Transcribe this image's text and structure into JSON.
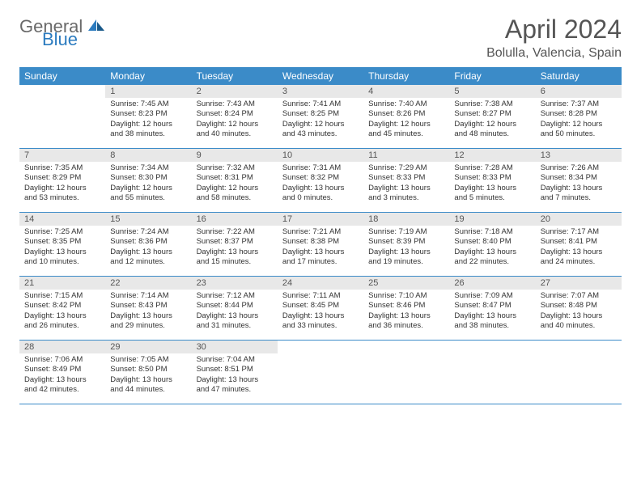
{
  "logo": {
    "general": "General",
    "blue": "Blue"
  },
  "title": "April 2024",
  "location": "Bolulla, Valencia, Spain",
  "colors": {
    "header_bg": "#3b8bc8",
    "header_text": "#ffffff",
    "daynum_bg": "#e8e8e8",
    "border": "#3b8bc8",
    "logo_gray": "#6a6a6a",
    "logo_blue": "#2b7bbf",
    "body_text": "#333333"
  },
  "weekdays": [
    "Sunday",
    "Monday",
    "Tuesday",
    "Wednesday",
    "Thursday",
    "Friday",
    "Saturday"
  ],
  "weeks": [
    [
      {
        "num": "",
        "sunrise": "",
        "sunset": "",
        "daylight": ""
      },
      {
        "num": "1",
        "sunrise": "Sunrise: 7:45 AM",
        "sunset": "Sunset: 8:23 PM",
        "daylight": "Daylight: 12 hours and 38 minutes."
      },
      {
        "num": "2",
        "sunrise": "Sunrise: 7:43 AM",
        "sunset": "Sunset: 8:24 PM",
        "daylight": "Daylight: 12 hours and 40 minutes."
      },
      {
        "num": "3",
        "sunrise": "Sunrise: 7:41 AM",
        "sunset": "Sunset: 8:25 PM",
        "daylight": "Daylight: 12 hours and 43 minutes."
      },
      {
        "num": "4",
        "sunrise": "Sunrise: 7:40 AM",
        "sunset": "Sunset: 8:26 PM",
        "daylight": "Daylight: 12 hours and 45 minutes."
      },
      {
        "num": "5",
        "sunrise": "Sunrise: 7:38 AM",
        "sunset": "Sunset: 8:27 PM",
        "daylight": "Daylight: 12 hours and 48 minutes."
      },
      {
        "num": "6",
        "sunrise": "Sunrise: 7:37 AM",
        "sunset": "Sunset: 8:28 PM",
        "daylight": "Daylight: 12 hours and 50 minutes."
      }
    ],
    [
      {
        "num": "7",
        "sunrise": "Sunrise: 7:35 AM",
        "sunset": "Sunset: 8:29 PM",
        "daylight": "Daylight: 12 hours and 53 minutes."
      },
      {
        "num": "8",
        "sunrise": "Sunrise: 7:34 AM",
        "sunset": "Sunset: 8:30 PM",
        "daylight": "Daylight: 12 hours and 55 minutes."
      },
      {
        "num": "9",
        "sunrise": "Sunrise: 7:32 AM",
        "sunset": "Sunset: 8:31 PM",
        "daylight": "Daylight: 12 hours and 58 minutes."
      },
      {
        "num": "10",
        "sunrise": "Sunrise: 7:31 AM",
        "sunset": "Sunset: 8:32 PM",
        "daylight": "Daylight: 13 hours and 0 minutes."
      },
      {
        "num": "11",
        "sunrise": "Sunrise: 7:29 AM",
        "sunset": "Sunset: 8:33 PM",
        "daylight": "Daylight: 13 hours and 3 minutes."
      },
      {
        "num": "12",
        "sunrise": "Sunrise: 7:28 AM",
        "sunset": "Sunset: 8:33 PM",
        "daylight": "Daylight: 13 hours and 5 minutes."
      },
      {
        "num": "13",
        "sunrise": "Sunrise: 7:26 AM",
        "sunset": "Sunset: 8:34 PM",
        "daylight": "Daylight: 13 hours and 7 minutes."
      }
    ],
    [
      {
        "num": "14",
        "sunrise": "Sunrise: 7:25 AM",
        "sunset": "Sunset: 8:35 PM",
        "daylight": "Daylight: 13 hours and 10 minutes."
      },
      {
        "num": "15",
        "sunrise": "Sunrise: 7:24 AM",
        "sunset": "Sunset: 8:36 PM",
        "daylight": "Daylight: 13 hours and 12 minutes."
      },
      {
        "num": "16",
        "sunrise": "Sunrise: 7:22 AM",
        "sunset": "Sunset: 8:37 PM",
        "daylight": "Daylight: 13 hours and 15 minutes."
      },
      {
        "num": "17",
        "sunrise": "Sunrise: 7:21 AM",
        "sunset": "Sunset: 8:38 PM",
        "daylight": "Daylight: 13 hours and 17 minutes."
      },
      {
        "num": "18",
        "sunrise": "Sunrise: 7:19 AM",
        "sunset": "Sunset: 8:39 PM",
        "daylight": "Daylight: 13 hours and 19 minutes."
      },
      {
        "num": "19",
        "sunrise": "Sunrise: 7:18 AM",
        "sunset": "Sunset: 8:40 PM",
        "daylight": "Daylight: 13 hours and 22 minutes."
      },
      {
        "num": "20",
        "sunrise": "Sunrise: 7:17 AM",
        "sunset": "Sunset: 8:41 PM",
        "daylight": "Daylight: 13 hours and 24 minutes."
      }
    ],
    [
      {
        "num": "21",
        "sunrise": "Sunrise: 7:15 AM",
        "sunset": "Sunset: 8:42 PM",
        "daylight": "Daylight: 13 hours and 26 minutes."
      },
      {
        "num": "22",
        "sunrise": "Sunrise: 7:14 AM",
        "sunset": "Sunset: 8:43 PM",
        "daylight": "Daylight: 13 hours and 29 minutes."
      },
      {
        "num": "23",
        "sunrise": "Sunrise: 7:12 AM",
        "sunset": "Sunset: 8:44 PM",
        "daylight": "Daylight: 13 hours and 31 minutes."
      },
      {
        "num": "24",
        "sunrise": "Sunrise: 7:11 AM",
        "sunset": "Sunset: 8:45 PM",
        "daylight": "Daylight: 13 hours and 33 minutes."
      },
      {
        "num": "25",
        "sunrise": "Sunrise: 7:10 AM",
        "sunset": "Sunset: 8:46 PM",
        "daylight": "Daylight: 13 hours and 36 minutes."
      },
      {
        "num": "26",
        "sunrise": "Sunrise: 7:09 AM",
        "sunset": "Sunset: 8:47 PM",
        "daylight": "Daylight: 13 hours and 38 minutes."
      },
      {
        "num": "27",
        "sunrise": "Sunrise: 7:07 AM",
        "sunset": "Sunset: 8:48 PM",
        "daylight": "Daylight: 13 hours and 40 minutes."
      }
    ],
    [
      {
        "num": "28",
        "sunrise": "Sunrise: 7:06 AM",
        "sunset": "Sunset: 8:49 PM",
        "daylight": "Daylight: 13 hours and 42 minutes."
      },
      {
        "num": "29",
        "sunrise": "Sunrise: 7:05 AM",
        "sunset": "Sunset: 8:50 PM",
        "daylight": "Daylight: 13 hours and 44 minutes."
      },
      {
        "num": "30",
        "sunrise": "Sunrise: 7:04 AM",
        "sunset": "Sunset: 8:51 PM",
        "daylight": "Daylight: 13 hours and 47 minutes."
      },
      {
        "num": "",
        "sunrise": "",
        "sunset": "",
        "daylight": ""
      },
      {
        "num": "",
        "sunrise": "",
        "sunset": "",
        "daylight": ""
      },
      {
        "num": "",
        "sunrise": "",
        "sunset": "",
        "daylight": ""
      },
      {
        "num": "",
        "sunrise": "",
        "sunset": "",
        "daylight": ""
      }
    ]
  ]
}
